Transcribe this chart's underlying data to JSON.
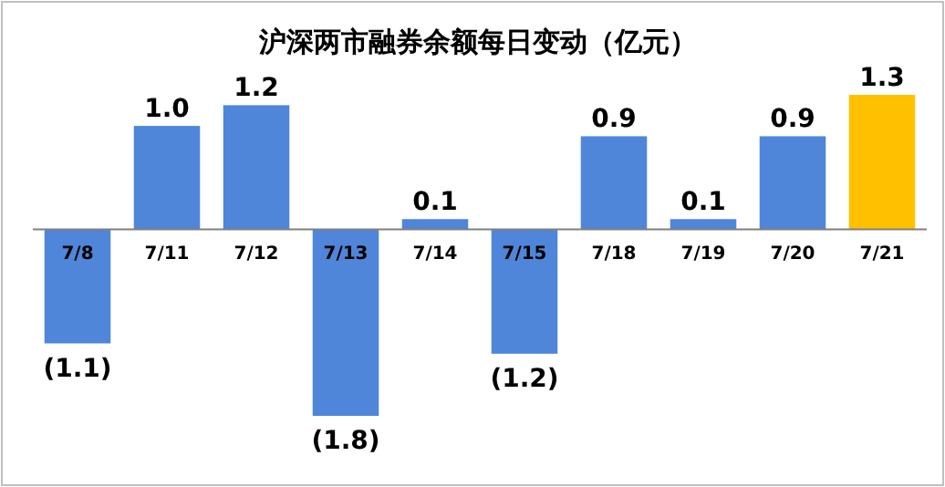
{
  "chart_data": {
    "type": "bar",
    "title": "沪深两市融券余额每日变动（亿元）",
    "categories": [
      "7/8",
      "7/11",
      "7/12",
      "7/13",
      "7/14",
      "7/15",
      "7/18",
      "7/19",
      "7/20",
      "7/21"
    ],
    "values": [
      -1.1,
      1.0,
      1.2,
      -1.8,
      0.1,
      -1.2,
      0.9,
      0.1,
      0.9,
      1.3
    ],
    "value_labels": [
      "(1.1)",
      "1.0",
      "1.2",
      "(1.8)",
      "0.1",
      "(1.2)",
      "0.9",
      "0.1",
      "0.9",
      "1.3"
    ],
    "colors": [
      "#4f86d9",
      "#4f86d9",
      "#4f86d9",
      "#4f86d9",
      "#4f86d9",
      "#4f86d9",
      "#4f86d9",
      "#4f86d9",
      "#4f86d9",
      "#ffc000"
    ]
  }
}
